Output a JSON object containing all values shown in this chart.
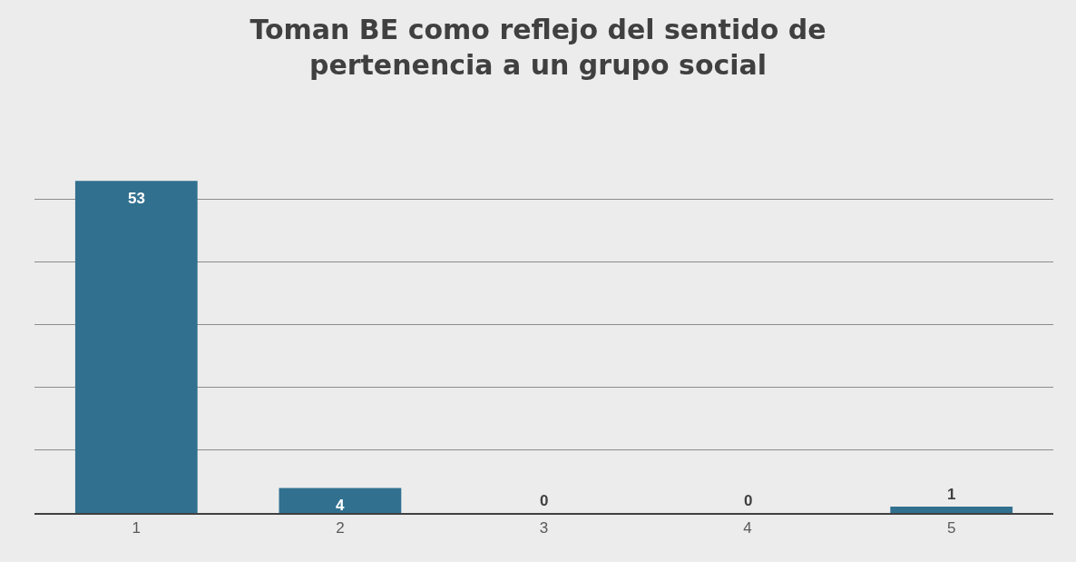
{
  "chart_data": {
    "type": "bar",
    "title": "Toman BE como reflejo del sentido de pertenencia a un grupo social",
    "categories": [
      "1",
      "2",
      "3",
      "4",
      "5"
    ],
    "values": [
      53,
      4,
      0,
      0,
      1
    ],
    "color": "#31708f",
    "data_labels": true,
    "grid": "y",
    "tick_labels": "x"
  }
}
